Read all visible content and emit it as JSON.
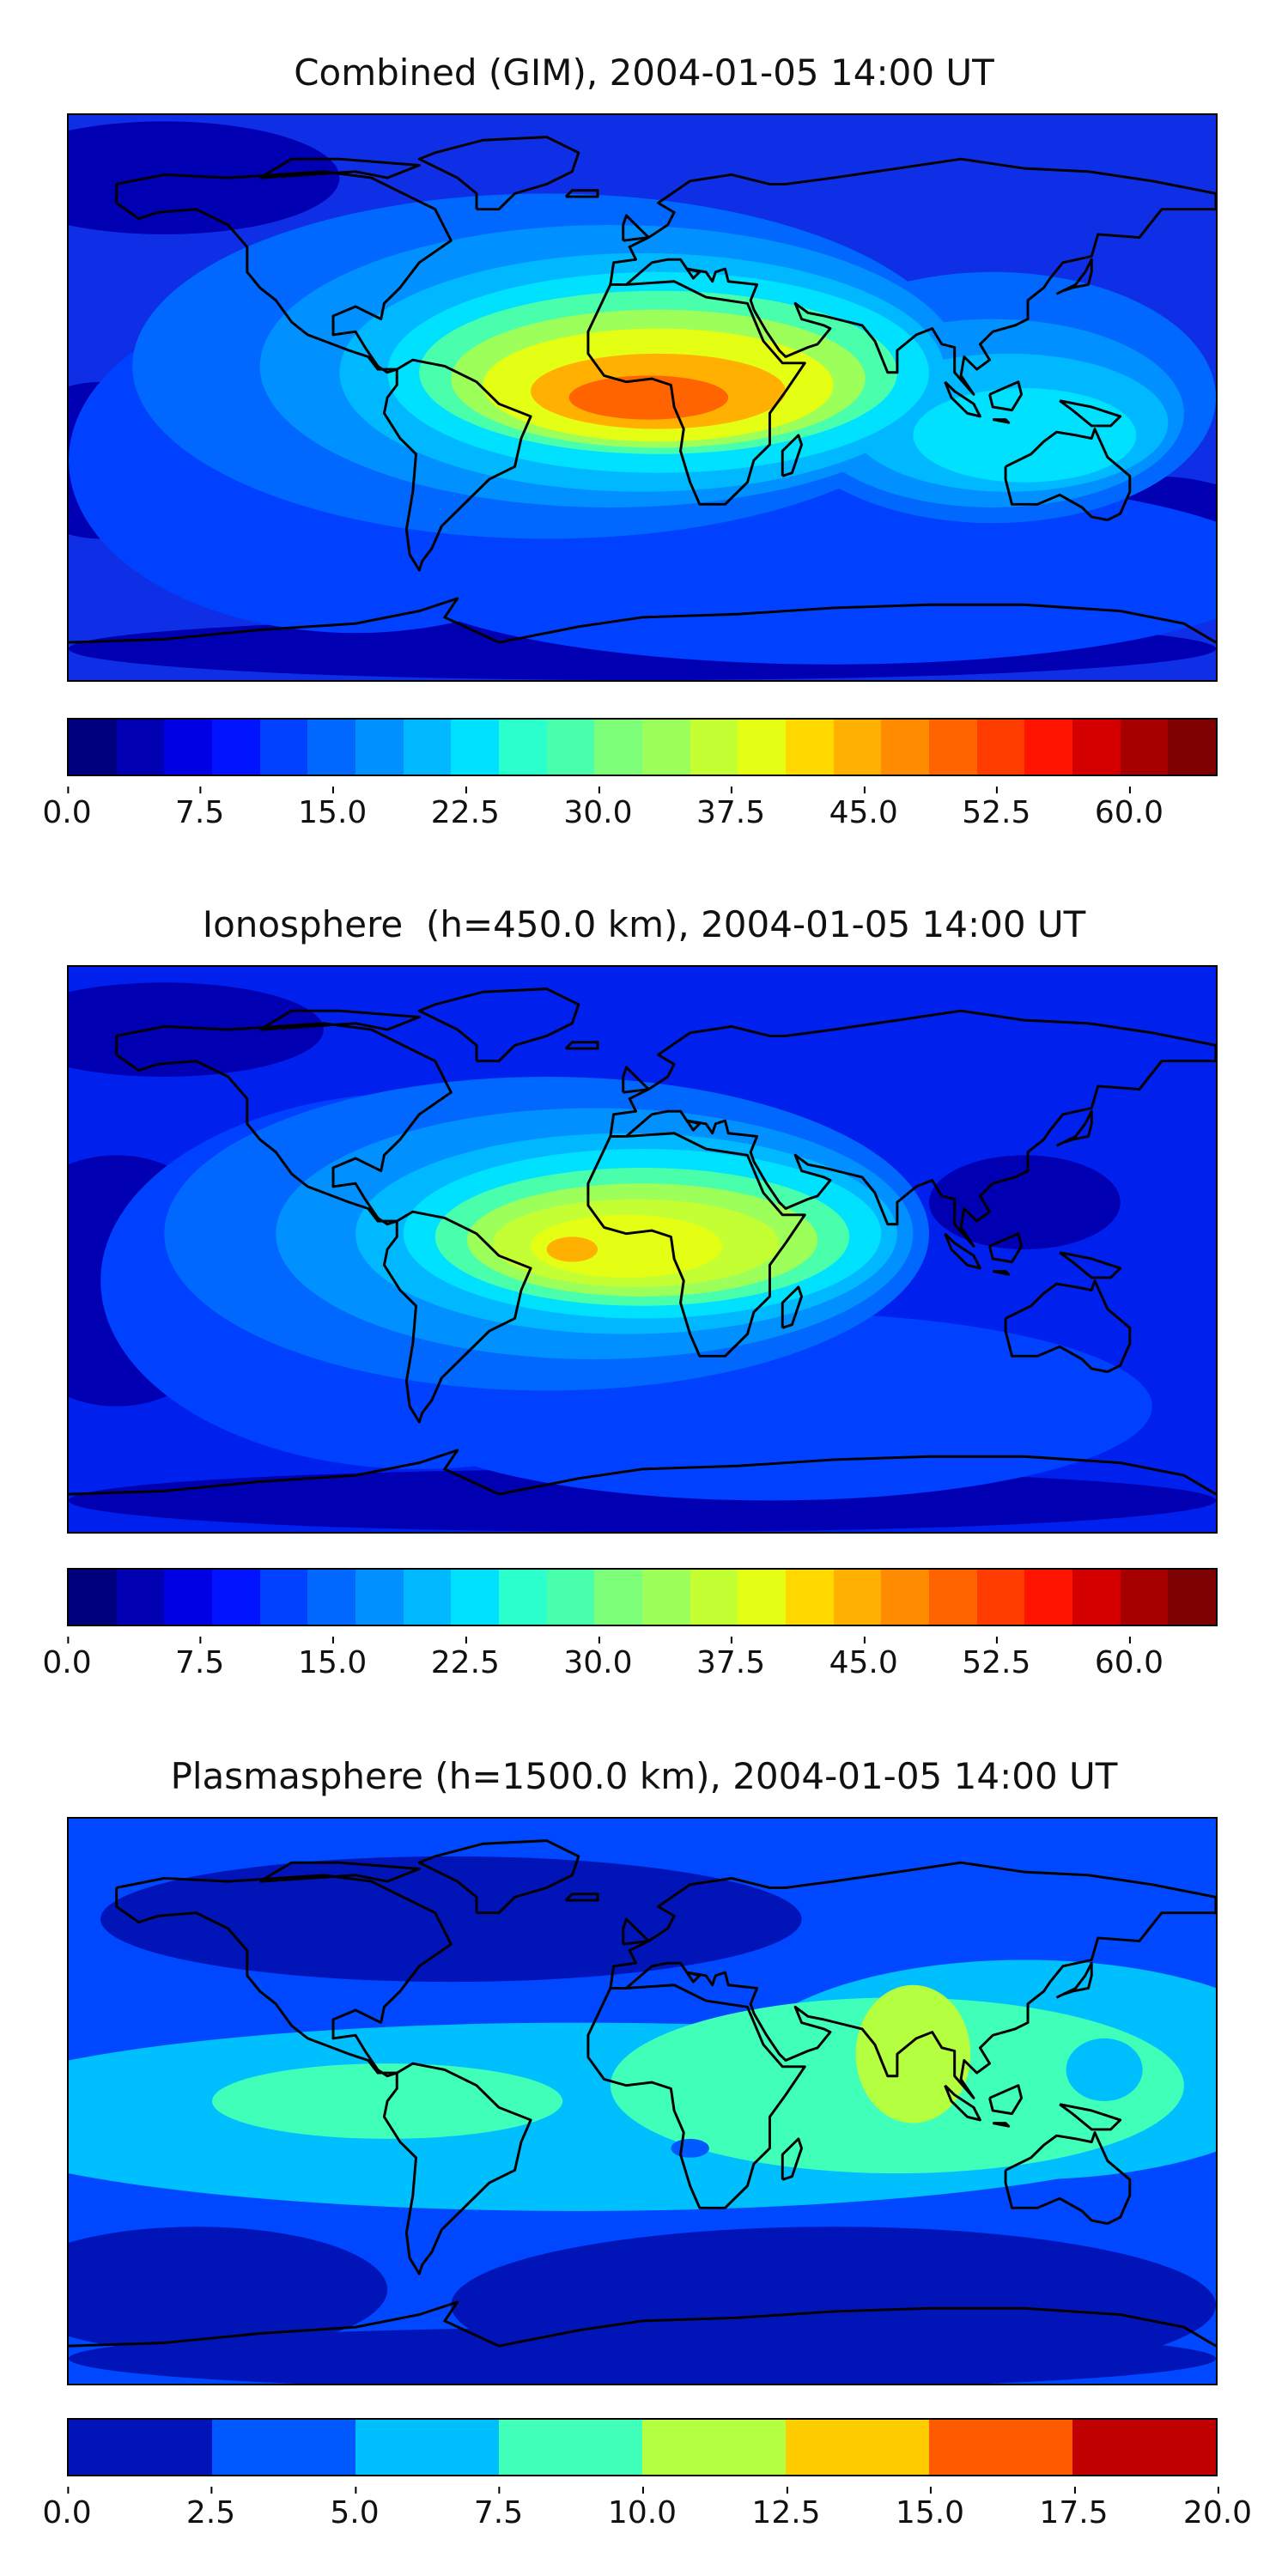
{
  "panels": [
    {
      "id": "combined",
      "title": "Combined (GIM), 2004-01-05 14:00 UT",
      "background": "#0f2fe6",
      "colorbar": {
        "colors": [
          "#00007f",
          "#0000b2",
          "#0000e4",
          "#0014ff",
          "#0040ff",
          "#0068ff",
          "#0090ff",
          "#00b8ff",
          "#00e0ff",
          "#2bffcb",
          "#4affac",
          "#7dff7a",
          "#9cff5a",
          "#c4ff33",
          "#e4ff13",
          "#ffd800",
          "#ffb000",
          "#ff8c00",
          "#ff6400",
          "#ff3c00",
          "#ff1400",
          "#d40000",
          "#a60000",
          "#7f0000"
        ],
        "ticks": [
          "0.0",
          "7.5",
          "15.0",
          "22.5",
          "30.0",
          "37.5",
          "45.0",
          "52.5",
          "60.0"
        ],
        "min": 0,
        "max": 65,
        "tick_values": [
          0,
          7.5,
          15,
          22.5,
          30,
          37.5,
          45,
          52.5,
          60
        ]
      },
      "blobs": [
        {
          "color": "#0000b2",
          "data": [
            [
              -150,
              70,
              55,
              18
            ],
            [
              -170,
              -20,
              30,
              25
            ],
            [
              160,
              -45,
              40,
              20
            ],
            [
              0,
              -80,
              180,
              10
            ]
          ]
        },
        {
          "color": "#0040ff",
          "data": [
            [
              -90,
              -20,
              90,
              55
            ],
            [
              60,
              -55,
              140,
              30
            ]
          ]
        },
        {
          "color": "#0068ff",
          "data": [
            [
              -30,
              10,
              130,
              55
            ],
            [
              110,
              0,
              70,
              40
            ]
          ]
        },
        {
          "color": "#0090ff",
          "data": [
            [
              -10,
              10,
              110,
              45
            ],
            [
              110,
              -5,
              60,
              30
            ]
          ]
        },
        {
          "color": "#00b8ff",
          "data": [
            [
              0,
              8,
              95,
              38
            ],
            [
              115,
              -8,
              50,
              22
            ]
          ]
        },
        {
          "color": "#00e0ff",
          "data": [
            [
              5,
              8,
              85,
              32
            ],
            [
              120,
              -12,
              35,
              15
            ]
          ]
        },
        {
          "color": "#4affac",
          "data": [
            [
              5,
              8,
              75,
              26
            ]
          ]
        },
        {
          "color": "#9cff5a",
          "data": [
            [
              5,
              6,
              65,
              22
            ]
          ]
        },
        {
          "color": "#e4ff13",
          "data": [
            [
              5,
              4,
              55,
              18
            ]
          ]
        },
        {
          "color": "#ffb000",
          "data": [
            [
              5,
              2,
              40,
              12
            ]
          ]
        },
        {
          "color": "#ff6400",
          "data": [
            [
              2,
              0,
              25,
              7
            ]
          ]
        }
      ]
    },
    {
      "id": "ionosphere",
      "title": "Ionosphere  (h=450.0 km), 2004-01-05 14:00 UT",
      "background": "#0020ee",
      "colorbar": {
        "colors": [
          "#00007f",
          "#0000b2",
          "#0000e4",
          "#0014ff",
          "#0040ff",
          "#0068ff",
          "#0090ff",
          "#00b8ff",
          "#00e0ff",
          "#2bffcb",
          "#4affac",
          "#7dff7a",
          "#9cff5a",
          "#c4ff33",
          "#e4ff13",
          "#ffd800",
          "#ffb000",
          "#ff8c00",
          "#ff6400",
          "#ff3c00",
          "#ff1400",
          "#d40000",
          "#a60000",
          "#7f0000"
        ],
        "ticks": [
          "0.0",
          "7.5",
          "15.0",
          "22.5",
          "30.0",
          "37.5",
          "45.0",
          "52.5",
          "60.0"
        ],
        "min": 0,
        "max": 65,
        "tick_values": [
          0,
          7.5,
          15,
          22.5,
          30,
          37.5,
          45,
          52.5,
          60
        ]
      },
      "blobs": [
        {
          "color": "#0000b2",
          "data": [
            [
              -165,
              -10,
              40,
              40
            ],
            [
              120,
              15,
              30,
              15
            ],
            [
              0,
              -80,
              180,
              10
            ],
            [
              -150,
              70,
              50,
              15
            ]
          ]
        },
        {
          "color": "#0040ff",
          "data": [
            [
              -70,
              -10,
              100,
              60
            ],
            [
              40,
              -50,
              120,
              30
            ]
          ]
        },
        {
          "color": "#0068ff",
          "data": [
            [
              -30,
              5,
              120,
              50
            ]
          ]
        },
        {
          "color": "#0090ff",
          "data": [
            [
              -15,
              5,
              100,
              40
            ]
          ]
        },
        {
          "color": "#00b8ff",
          "data": [
            [
              -5,
              5,
              85,
              32
            ]
          ]
        },
        {
          "color": "#00e0ff",
          "data": [
            [
              0,
              5,
              75,
              27
            ]
          ]
        },
        {
          "color": "#4affac",
          "data": [
            [
              0,
              4,
              65,
              22
            ]
          ]
        },
        {
          "color": "#9cff5a",
          "data": [
            [
              0,
              3,
              55,
              18
            ]
          ]
        },
        {
          "color": "#c4ff33",
          "data": [
            [
              -2,
              2,
              45,
              14
            ]
          ]
        },
        {
          "color": "#e4ff13",
          "data": [
            [
              -5,
              1,
              30,
              10
            ]
          ]
        },
        {
          "color": "#ffb000",
          "data": [
            [
              -22,
              0,
              8,
              4
            ]
          ]
        }
      ]
    },
    {
      "id": "plasmasphere",
      "title": "Plasmasphere (h=1500.0 km), 2004-01-05 14:00 UT",
      "background": "#0048ff",
      "colorbar": {
        "colors": [
          "#0014b8",
          "#0058ff",
          "#00bfff",
          "#40ffb8",
          "#b4ff40",
          "#ffcc00",
          "#ff5a00",
          "#c00000"
        ],
        "ticks": [
          "0.0",
          "2.5",
          "5.0",
          "7.5",
          "10.0",
          "12.5",
          "15.0",
          "17.5",
          "20.0"
        ],
        "min": 0,
        "max": 20,
        "tick_values": [
          0,
          2.5,
          5,
          7.5,
          10,
          12.5,
          15,
          17.5,
          20
        ]
      },
      "blobs": [
        {
          "color": "#0014b8",
          "data": [
            [
              -60,
              58,
              110,
              20
            ],
            [
              60,
              -65,
              120,
              25
            ],
            [
              -140,
              -60,
              60,
              20
            ],
            [
              0,
              -82,
              180,
              10
            ]
          ]
        },
        {
          "color": "#00bfff",
          "data": [
            [
              -20,
              -5,
              200,
              30
            ],
            [
              120,
              10,
              90,
              35
            ]
          ]
        },
        {
          "color": "#40ffb8",
          "data": [
            [
              -80,
              0,
              55,
              12
            ],
            [
              80,
              5,
              90,
              28
            ]
          ]
        },
        {
          "color": "#b4ff40",
          "data": [
            [
              85,
              15,
              18,
              22
            ]
          ]
        },
        {
          "color": "#00bfff",
          "data": [
            [
              145,
              10,
              12,
              10
            ]
          ]
        },
        {
          "color": "#0058ff",
          "data": [
            [
              15,
              -15,
              6,
              3
            ]
          ]
        }
      ]
    }
  ]
}
